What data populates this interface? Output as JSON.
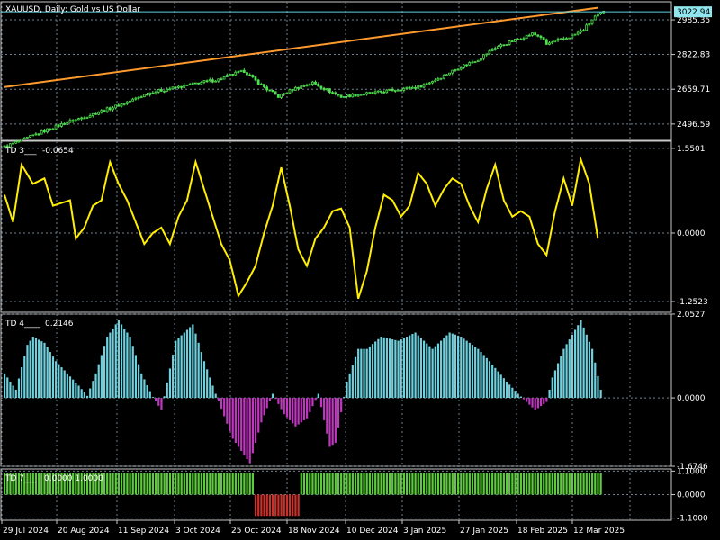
{
  "window": {
    "title": "XAUUSD, Daily:  Gold vs US Dollar"
  },
  "colors": {
    "background": "#000000",
    "grid": "#6f7f8f",
    "border": "#c8c8c8",
    "candle": "#4fe04f",
    "trendline": "#ff9a2e",
    "price_line": "#5fd0e0",
    "price_tag_bg": "#8fe6ee",
    "td3_line": "#ffee00",
    "td4_positive": "#6fd0de",
    "td4_negative": "#c038c0",
    "td7_positive": "#5ecb3e",
    "td7_negative": "#c8322a"
  },
  "chart_data": [
    {
      "type": "candlestick",
      "panel": "price",
      "symbol_label": "XAUUSD, Daily:  Gold vs US Dollar",
      "y_ticks": [
        "2985.35",
        "2822.83",
        "2659.71",
        "2496.59"
      ],
      "current_price": "3022.94",
      "ylim": [
        2420,
        3070
      ],
      "x_tick_labels": [
        "29 Jul 2024",
        "20 Aug 2024",
        "11 Sep 2024",
        "3 Oct 2024",
        "25 Oct 2024",
        "18 Nov 2024",
        "10 Dec 2024",
        "3 Jan 2025",
        "27 Jan 2025",
        "18 Feb 2025",
        "12 Mar 2025"
      ],
      "close_anchors": [
        [
          0,
          2390
        ],
        [
          6,
          2420
        ],
        [
          15,
          2470
        ],
        [
          22,
          2505
        ],
        [
          28,
          2530
        ],
        [
          38,
          2575
        ],
        [
          45,
          2610
        ],
        [
          50,
          2640
        ],
        [
          55,
          2655
        ],
        [
          62,
          2672
        ],
        [
          68,
          2690
        ],
        [
          75,
          2705
        ],
        [
          80,
          2730
        ],
        [
          84,
          2745
        ],
        [
          88,
          2700
        ],
        [
          92,
          2660
        ],
        [
          96,
          2625
        ],
        [
          101,
          2660
        ],
        [
          108,
          2690
        ],
        [
          114,
          2650
        ],
        [
          118,
          2625
        ],
        [
          124,
          2635
        ],
        [
          131,
          2645
        ],
        [
          138,
          2660
        ],
        [
          145,
          2670
        ],
        [
          152,
          2710
        ],
        [
          159,
          2760
        ],
        [
          166,
          2800
        ],
        [
          172,
          2855
        ],
        [
          176,
          2875
        ],
        [
          181,
          2900
        ],
        [
          185,
          2920
        ],
        [
          188,
          2905
        ],
        [
          190,
          2870
        ],
        [
          193,
          2885
        ],
        [
          196,
          2895
        ],
        [
          199,
          2910
        ],
        [
          203,
          2940
        ],
        [
          207,
          3000
        ],
        [
          210,
          3022
        ]
      ],
      "trendline": {
        "start": [
          0,
          2670
        ],
        "end": [
          208,
          3042
        ]
      }
    },
    {
      "type": "line",
      "panel": "TD 3",
      "label": "TD 3___",
      "value": "-0.0654",
      "y_ticks": [
        "1.5501",
        "0.0000",
        "-1.2523"
      ],
      "ylim": [
        -1.45,
        1.68
      ],
      "x_values": [
        0,
        3,
        6,
        10,
        14,
        17,
        20,
        23,
        25,
        28,
        31,
        34,
        37,
        40,
        43,
        46,
        49,
        52,
        55,
        58,
        61,
        64,
        67,
        70,
        73,
        76,
        79,
        82,
        85,
        88,
        91,
        94,
        97,
        100,
        103,
        106,
        109,
        112,
        115,
        118,
        121,
        124,
        127,
        130,
        133,
        136,
        139,
        142,
        145,
        148,
        151,
        154,
        157,
        160,
        163,
        166,
        169,
        172,
        175,
        178,
        181,
        184,
        187,
        190,
        193,
        196,
        199,
        202,
        205,
        208
      ],
      "values": [
        0.7,
        0.2,
        1.25,
        0.9,
        1.0,
        0.5,
        0.55,
        0.6,
        -0.1,
        0.1,
        0.5,
        0.6,
        1.3,
        0.9,
        0.6,
        0.2,
        -0.2,
        0.0,
        0.1,
        -0.2,
        0.3,
        0.6,
        1.3,
        0.8,
        0.3,
        -0.2,
        -0.5,
        -1.15,
        -0.9,
        -0.6,
        0.0,
        0.5,
        1.2,
        0.5,
        -0.3,
        -0.6,
        -0.1,
        0.1,
        0.4,
        0.45,
        0.1,
        -1.2,
        -0.7,
        0.1,
        0.7,
        0.6,
        0.3,
        0.5,
        1.1,
        0.9,
        0.5,
        0.8,
        1.0,
        0.9,
        0.5,
        0.2,
        0.8,
        1.25,
        0.6,
        0.3,
        0.4,
        0.3,
        -0.2,
        -0.4,
        0.4,
        1.0,
        0.5,
        1.35,
        0.9,
        -0.1
      ]
    },
    {
      "type": "histogram",
      "panel": "TD 4",
      "label": "TD 4____",
      "value": "0.2146",
      "y_ticks": [
        "2.0527",
        "0.0000",
        "-1.6746"
      ],
      "ylim": [
        -1.674,
        2.052
      ],
      "x_values": [
        0,
        4,
        8,
        10,
        14,
        18,
        22,
        26,
        29,
        32,
        36,
        40,
        44,
        48,
        52,
        55,
        60,
        66,
        70,
        74,
        80,
        84,
        86,
        90,
        94,
        98,
        102,
        106,
        110,
        114,
        116,
        120,
        124,
        127,
        132,
        138,
        144,
        150,
        156,
        160,
        166,
        170,
        176,
        180,
        186,
        190,
        192,
        196,
        202,
        206,
        209
      ],
      "values": [
        0.6,
        0.2,
        1.3,
        1.5,
        1.35,
        0.9,
        0.6,
        0.3,
        0.05,
        0.6,
        1.5,
        1.9,
        1.5,
        0.6,
        0.02,
        -0.3,
        1.4,
        1.8,
        0.9,
        0.1,
        -1.0,
        -1.4,
        -1.6,
        -0.6,
        0.1,
        -0.4,
        -0.7,
        -0.5,
        0.1,
        -1.2,
        -1.1,
        0.4,
        1.2,
        1.2,
        1.5,
        1.4,
        1.6,
        1.2,
        1.6,
        1.5,
        1.2,
        0.9,
        0.4,
        0.1,
        -0.3,
        -0.1,
        0.5,
        1.2,
        1.9,
        1.2,
        0.2
      ]
    },
    {
      "type": "bar",
      "panel": "TD 7",
      "label": "TD 7___",
      "values_label": "0.0000 1.0000",
      "y_ticks": [
        "1.1000",
        "0.0000",
        "-1.1000"
      ],
      "ylim": [
        -1.2,
        1.2
      ],
      "negative_range": [
        88,
        103
      ]
    }
  ]
}
